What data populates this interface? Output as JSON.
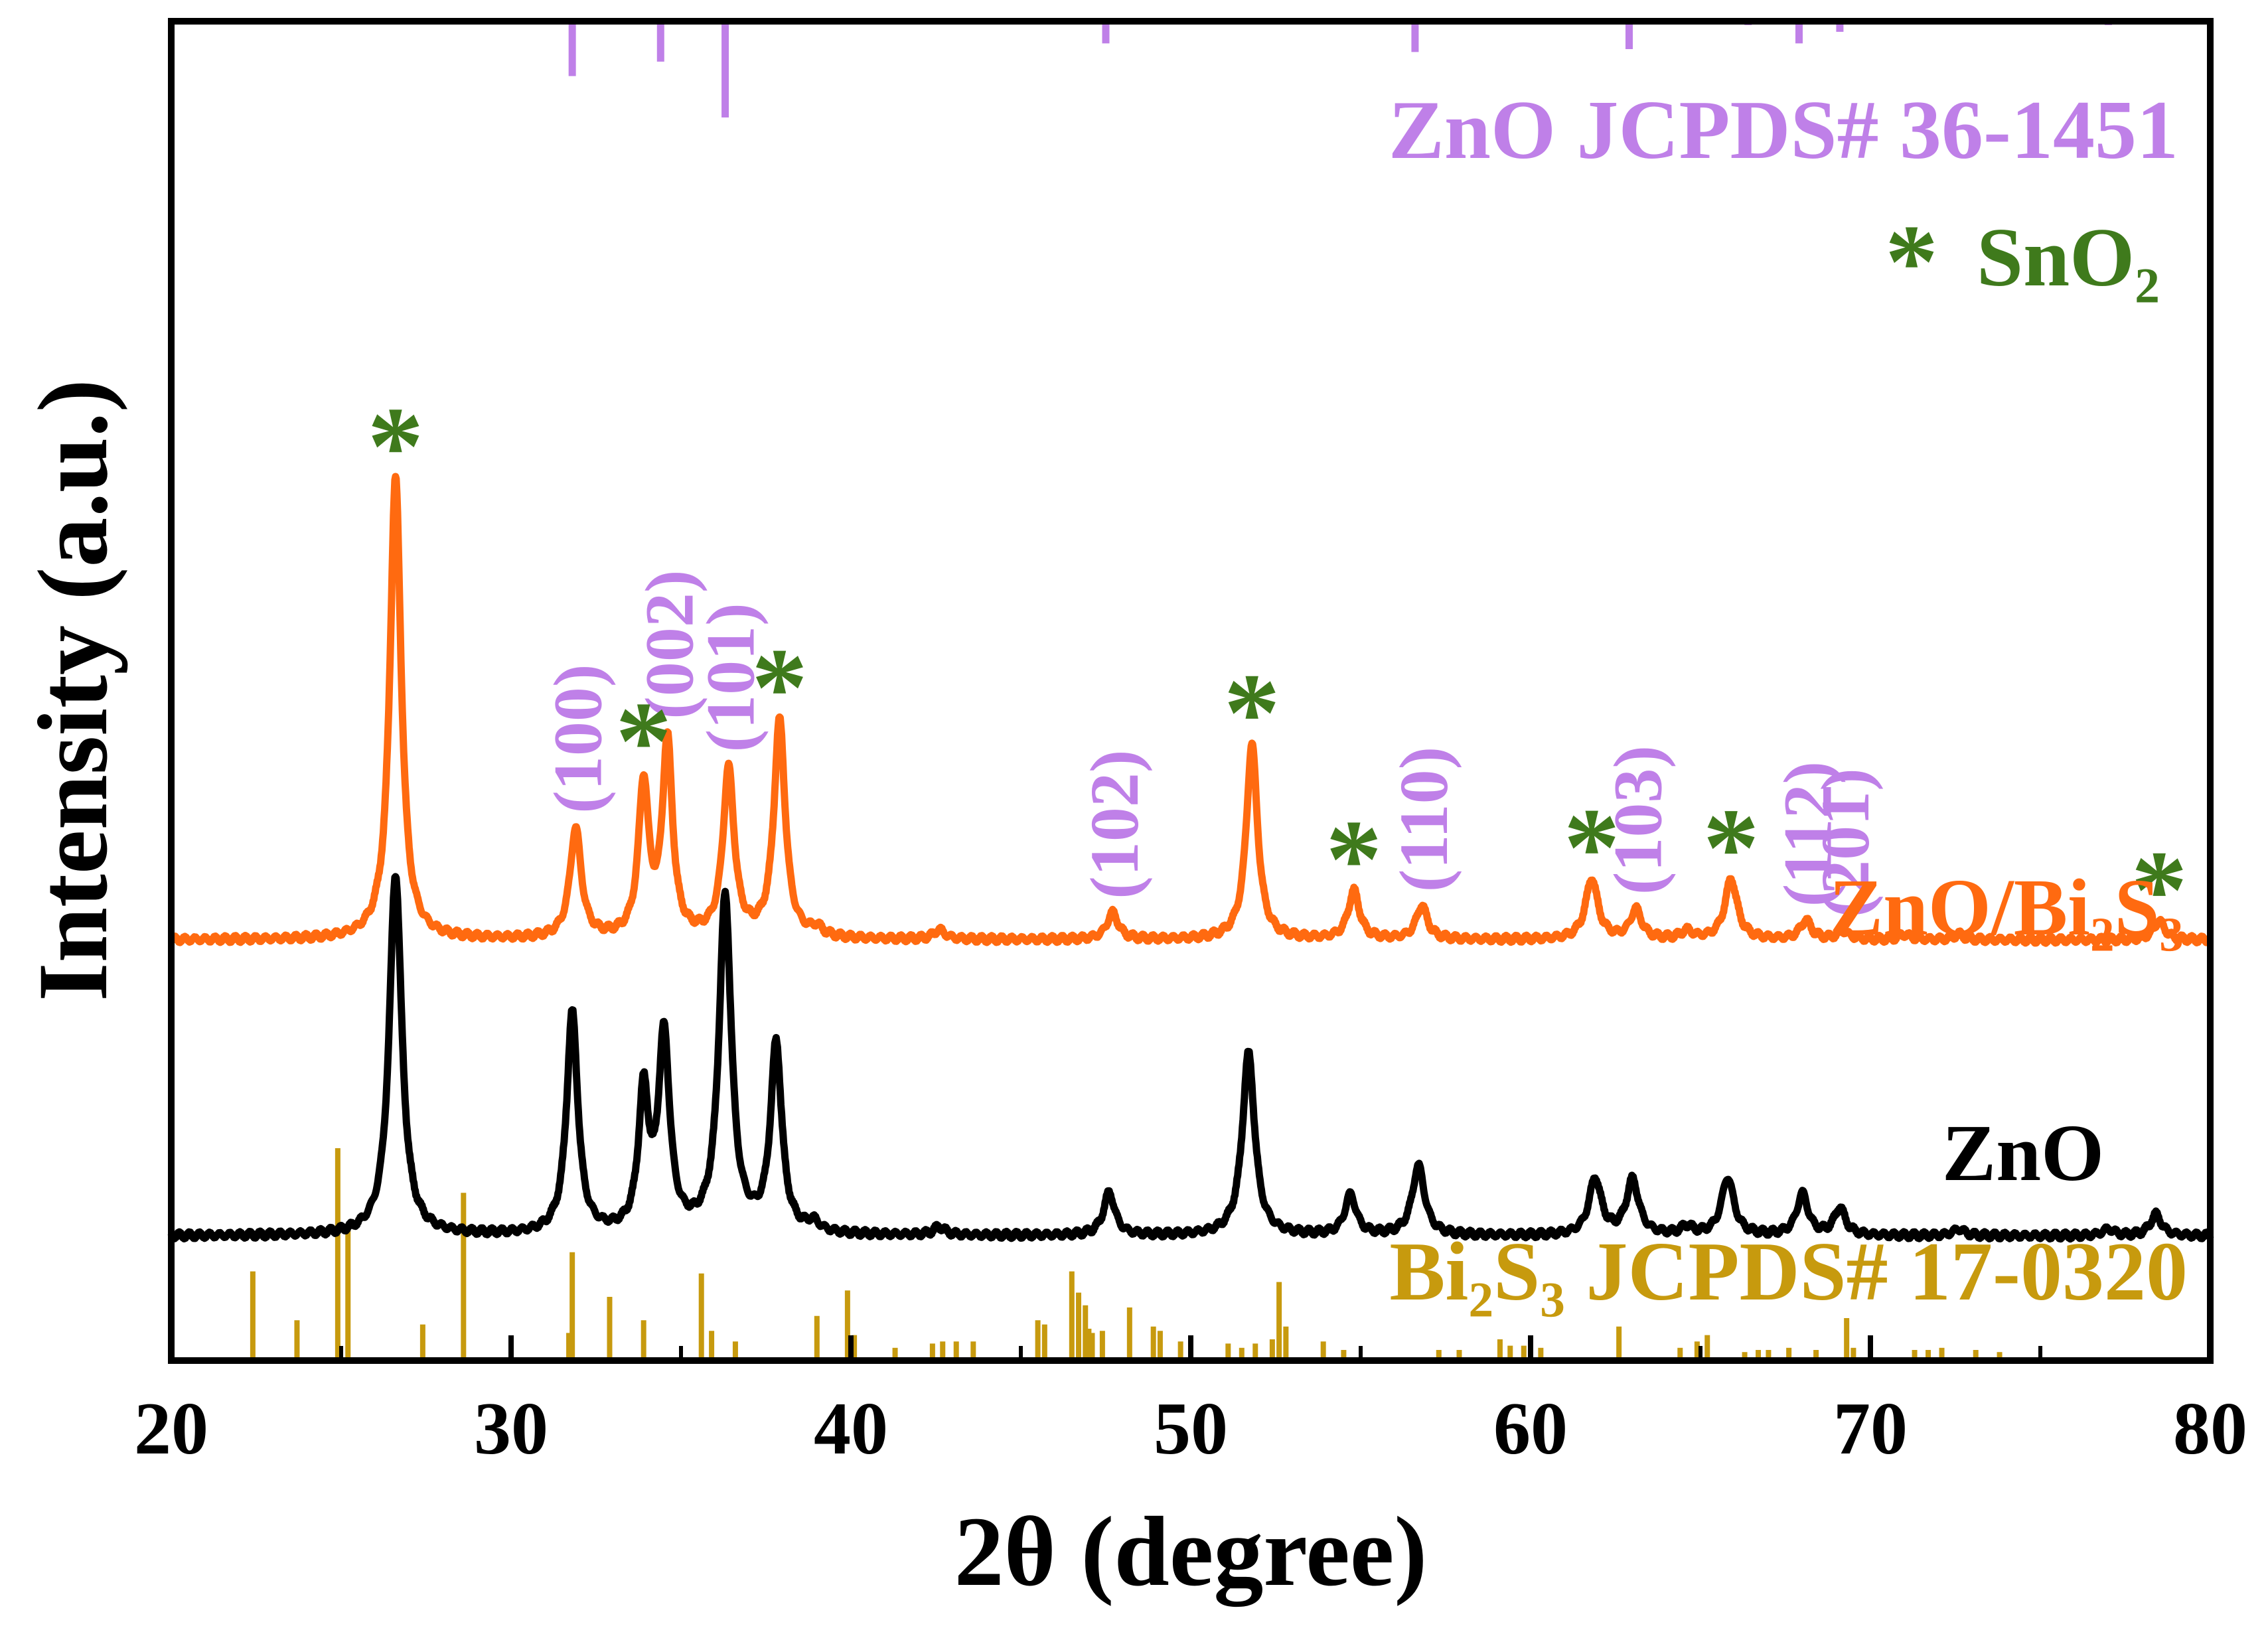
{
  "chart_data": {
    "type": "line",
    "title": "",
    "xlabel": "2θ (degree)",
    "ylabel": "Intensity (a.u.)",
    "xlim": [
      20,
      80
    ],
    "ylim": [
      0,
      100
    ],
    "x_ticks": [
      20,
      30,
      40,
      50,
      60,
      70,
      80
    ],
    "x_tick_labels": [
      "20",
      "30",
      "40",
      "50",
      "60",
      "70",
      "80"
    ],
    "y_ticks_shown": false,
    "colors": {
      "zno": "#000000",
      "composite": "#ff6a10",
      "zno_ref": "#bf80e8",
      "bi2s3_ref": "#c79a0e",
      "sno2": "#3f7a1c"
    },
    "series": [
      {
        "name": "ZnO",
        "label": "ZnO",
        "baseline": 9.3,
        "peaks": [
          {
            "x": 26.6,
            "h": 27.0,
            "w": 0.22
          },
          {
            "x": 31.8,
            "h": 16.5,
            "w": 0.2
          },
          {
            "x": 33.9,
            "h": 10.2,
            "w": 0.18
          },
          {
            "x": 34.5,
            "h": 14.5,
            "w": 0.2
          },
          {
            "x": 36.3,
            "h": 25.0,
            "w": 0.22
          },
          {
            "x": 37.8,
            "h": 14.0,
            "w": 0.2
          },
          {
            "x": 38.9,
            "h": 0.7,
            "w": 0.2
          },
          {
            "x": 42.6,
            "h": 0.6,
            "w": 0.2
          },
          {
            "x": 47.6,
            "h": 3.2,
            "w": 0.2
          },
          {
            "x": 51.7,
            "h": 13.6,
            "w": 0.22
          },
          {
            "x": 54.7,
            "h": 3.0,
            "w": 0.2
          },
          {
            "x": 56.7,
            "h": 5.2,
            "w": 0.22
          },
          {
            "x": 61.9,
            "h": 4.2,
            "w": 0.22
          },
          {
            "x": 63.0,
            "h": 4.1,
            "w": 0.22
          },
          {
            "x": 64.6,
            "h": 0.6,
            "w": 0.2
          },
          {
            "x": 65.8,
            "h": 4.3,
            "w": 0.22
          },
          {
            "x": 68.0,
            "h": 3.1,
            "w": 0.2
          },
          {
            "x": 69.1,
            "h": 2.0,
            "w": 0.2
          },
          {
            "x": 72.6,
            "h": 0.5,
            "w": 0.2
          },
          {
            "x": 77.0,
            "h": 0.5,
            "w": 0.2
          },
          {
            "x": 78.4,
            "h": 1.6,
            "w": 0.2
          }
        ]
      },
      {
        "name": "ZnO/Bi2S3",
        "label": "ZnO/Bi₂S₃",
        "baseline": 31.4,
        "peaks": [
          {
            "x": 26.6,
            "h": 34.5,
            "w": 0.2
          },
          {
            "x": 31.9,
            "h": 8.2,
            "w": 0.2
          },
          {
            "x": 33.9,
            "h": 11.4,
            "w": 0.18
          },
          {
            "x": 34.6,
            "h": 14.5,
            "w": 0.18
          },
          {
            "x": 36.4,
            "h": 12.5,
            "w": 0.2
          },
          {
            "x": 37.9,
            "h": 16.2,
            "w": 0.2
          },
          {
            "x": 39.0,
            "h": 0.6,
            "w": 0.2
          },
          {
            "x": 42.6,
            "h": 0.7,
            "w": 0.2
          },
          {
            "x": 47.7,
            "h": 2.0,
            "w": 0.2
          },
          {
            "x": 51.8,
            "h": 14.6,
            "w": 0.2
          },
          {
            "x": 54.8,
            "h": 3.6,
            "w": 0.2
          },
          {
            "x": 56.8,
            "h": 2.5,
            "w": 0.2
          },
          {
            "x": 61.8,
            "h": 4.5,
            "w": 0.22
          },
          {
            "x": 63.1,
            "h": 2.2,
            "w": 0.2
          },
          {
            "x": 64.6,
            "h": 0.6,
            "w": 0.2
          },
          {
            "x": 65.9,
            "h": 4.5,
            "w": 0.22
          },
          {
            "x": 68.1,
            "h": 1.4,
            "w": 0.2
          },
          {
            "x": 69.2,
            "h": 0.6,
            "w": 0.2
          },
          {
            "x": 71.0,
            "h": 0.4,
            "w": 0.2
          },
          {
            "x": 72.6,
            "h": 0.4,
            "w": 0.2
          },
          {
            "x": 78.5,
            "h": 1.4,
            "w": 0.2
          }
        ]
      }
    ],
    "reference_patterns": [
      {
        "name": "ZnO JCPDS# 36-1451",
        "label": "ZnO JCPDS# 36-1451",
        "position": "top",
        "lines": [
          {
            "x": 31.8,
            "h": 57
          },
          {
            "x": 34.4,
            "h": 42
          },
          {
            "x": 36.3,
            "h": 100
          },
          {
            "x": 47.5,
            "h": 23
          },
          {
            "x": 56.6,
            "h": 32
          },
          {
            "x": 62.9,
            "h": 29
          },
          {
            "x": 66.4,
            "h": 4
          },
          {
            "x": 67.9,
            "h": 23
          },
          {
            "x": 69.1,
            "h": 11
          },
          {
            "x": 72.6,
            "h": 2
          },
          {
            "x": 77.0,
            "h": 4
          }
        ]
      },
      {
        "name": "Bi2S3 JCPDS# 17-0320",
        "label": "Bi₂S₃ JCPDS# 17-0320",
        "position": "bottom",
        "lines": [
          {
            "x": 22.4,
            "h": 42
          },
          {
            "x": 23.7,
            "h": 19
          },
          {
            "x": 24.9,
            "h": 100
          },
          {
            "x": 25.2,
            "h": 62
          },
          {
            "x": 27.4,
            "h": 17
          },
          {
            "x": 28.6,
            "h": 79
          },
          {
            "x": 31.7,
            "h": 13
          },
          {
            "x": 31.8,
            "h": 51
          },
          {
            "x": 32.9,
            "h": 30
          },
          {
            "x": 33.9,
            "h": 19
          },
          {
            "x": 35.6,
            "h": 41
          },
          {
            "x": 35.9,
            "h": 14
          },
          {
            "x": 36.6,
            "h": 9
          },
          {
            "x": 39.0,
            "h": 21
          },
          {
            "x": 39.9,
            "h": 33
          },
          {
            "x": 40.1,
            "h": 12
          },
          {
            "x": 41.3,
            "h": 6
          },
          {
            "x": 42.4,
            "h": 8
          },
          {
            "x": 42.7,
            "h": 9
          },
          {
            "x": 43.1,
            "h": 9
          },
          {
            "x": 43.6,
            "h": 9
          },
          {
            "x": 45.5,
            "h": 19
          },
          {
            "x": 45.7,
            "h": 17
          },
          {
            "x": 46.5,
            "h": 42
          },
          {
            "x": 46.7,
            "h": 32
          },
          {
            "x": 46.9,
            "h": 26
          },
          {
            "x": 47.0,
            "h": 15
          },
          {
            "x": 47.1,
            "h": 13
          },
          {
            "x": 47.4,
            "h": 14
          },
          {
            "x": 48.2,
            "h": 25
          },
          {
            "x": 48.9,
            "h": 16
          },
          {
            "x": 49.1,
            "h": 14
          },
          {
            "x": 49.7,
            "h": 9
          },
          {
            "x": 51.1,
            "h": 8
          },
          {
            "x": 51.5,
            "h": 6
          },
          {
            "x": 51.9,
            "h": 8
          },
          {
            "x": 52.4,
            "h": 10
          },
          {
            "x": 52.6,
            "h": 37
          },
          {
            "x": 52.8,
            "h": 16
          },
          {
            "x": 53.9,
            "h": 9
          },
          {
            "x": 54.5,
            "h": 5
          },
          {
            "x": 57.3,
            "h": 5
          },
          {
            "x": 57.9,
            "h": 5
          },
          {
            "x": 59.1,
            "h": 10
          },
          {
            "x": 59.4,
            "h": 7
          },
          {
            "x": 59.8,
            "h": 7
          },
          {
            "x": 60.3,
            "h": 6
          },
          {
            "x": 62.6,
            "h": 16
          },
          {
            "x": 64.4,
            "h": 6
          },
          {
            "x": 64.9,
            "h": 9
          },
          {
            "x": 65.2,
            "h": 12
          },
          {
            "x": 66.3,
            "h": 4
          },
          {
            "x": 66.7,
            "h": 5
          },
          {
            "x": 67.0,
            "h": 5
          },
          {
            "x": 67.6,
            "h": 6
          },
          {
            "x": 68.4,
            "h": 5
          },
          {
            "x": 69.3,
            "h": 20
          },
          {
            "x": 69.5,
            "h": 6
          },
          {
            "x": 71.3,
            "h": 5
          },
          {
            "x": 71.7,
            "h": 5
          },
          {
            "x": 72.1,
            "h": 6
          },
          {
            "x": 73.1,
            "h": 5
          },
          {
            "x": 73.8,
            "h": 4
          }
        ]
      }
    ],
    "annotations": {
      "miller_indices": [
        {
          "label": "(100)",
          "x": 31.9
        },
        {
          "label": "(002)",
          "x": 34.6
        },
        {
          "label": "(101)",
          "x": 36.4
        },
        {
          "label": "(102)",
          "x": 47.7
        },
        {
          "label": "(110)",
          "x": 56.8
        },
        {
          "label": "(103)",
          "x": 63.1
        },
        {
          "label": "(112)",
          "x": 68.1
        },
        {
          "label": "(201)",
          "x": 69.2
        }
      ],
      "sno2_markers": [
        {
          "label": "*",
          "x": 26.6
        },
        {
          "label": "*",
          "x": 33.9
        },
        {
          "label": "*",
          "x": 37.9
        },
        {
          "label": "*",
          "x": 51.8
        },
        {
          "label": "*",
          "x": 54.8
        },
        {
          "label": "*",
          "x": 61.8
        },
        {
          "label": "*",
          "x": 65.9
        },
        {
          "label": "*",
          "x": 78.5
        }
      ]
    },
    "legend": {
      "position": "top-right",
      "zno_ref_label": "ZnO JCPDS# 36-1451",
      "sno2_symbol": "*",
      "sno2_label": "SnO₂"
    }
  }
}
